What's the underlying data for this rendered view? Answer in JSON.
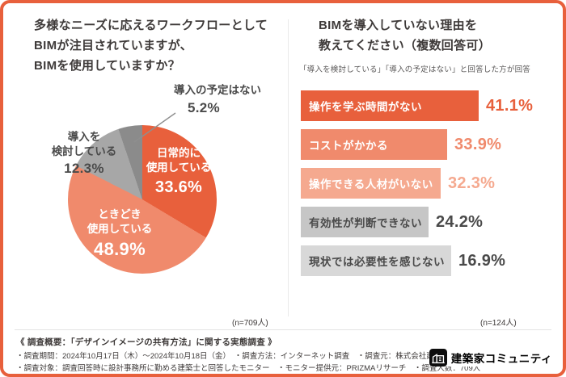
{
  "colors": {
    "accent": "#E8603C",
    "salmon": "#F08A6C",
    "light_salmon": "#F5A98F",
    "pie_gray": "#A7A7A7",
    "pie_gray_dark": "#8B8B8B",
    "bar_gray": "#C6C6C6",
    "bar_gray_light": "#D8D8D8",
    "text_dark": "#3E3A39"
  },
  "left_panel": {
    "title_lines": [
      "多様なニーズに応えるワークフローとして",
      "BIMが注目されていますが、",
      "BIMを使用していますか？"
    ],
    "pie": {
      "slices": [
        {
          "label": "日常的に使用している",
          "line1": "日常的に",
          "line2": "使用している",
          "pct": "33.6%",
          "value": 33.6,
          "color": "#E8603C"
        },
        {
          "label": "ときどき使用している",
          "line1": "ときどき",
          "line2": "使用している",
          "pct": "48.9%",
          "value": 48.9,
          "color": "#F08A6C"
        },
        {
          "label": "導入を検討している",
          "line1": "導入を",
          "line2": "検討している",
          "pct": "12.3%",
          "value": 12.3,
          "color": "#A7A7A7"
        },
        {
          "label": "導入の予定はない",
          "line1": "導入の予定はない",
          "pct": "5.2%",
          "value": 5.2,
          "color": "#8B8B8B"
        }
      ]
    },
    "sample_label": "(n=709人)"
  },
  "right_panel": {
    "title_lines": [
      "BIMを導入していない理由を",
      "教えてください（複数回答可）"
    ],
    "subtitle": "「導入を検討している」「導入の予定はない」と回答した方が回答",
    "bars": [
      {
        "label": "操作を学ぶ時間がない",
        "pct": "41.1%",
        "value": 41.1,
        "bar_color": "#E8603C",
        "label_color": "#FFFFFF",
        "pct_color": "#E8603C"
      },
      {
        "label": "コストがかかる",
        "pct": "33.9%",
        "value": 33.9,
        "bar_color": "#F08A6C",
        "label_color": "#FFFFFF",
        "pct_color": "#F08A6C"
      },
      {
        "label": "操作できる人材がいない",
        "pct": "32.3%",
        "value": 32.3,
        "bar_color": "#F5A98F",
        "label_color": "#FFFFFF",
        "pct_color": "#F5A98F"
      },
      {
        "label": "有効性が判断できない",
        "pct": "24.2%",
        "value": 24.2,
        "bar_color": "#C6C6C6",
        "label_color": "#4A4A4A",
        "pct_color": "#4A4A4A"
      },
      {
        "label": "現状では必要性を感じない",
        "pct": "16.9%",
        "value": 16.9,
        "bar_color": "#D8D8D8",
        "label_color": "#4A4A4A",
        "pct_color": "#4A4A4A"
      }
    ],
    "sample_label": "(n=124人)"
  },
  "footer": {
    "overview": "《 調査概要：「デザインイメージの共有方法」に関する実態調査 》",
    "line2": "・調査期間：2024年10月17日（木）〜2024年10月18日（金）　・調査方法：インターネット調査　・調査元：株式会社建築家コミュニティ",
    "line3": "・調査対象：調査回答時に設計事務所に勤める建築士と回答したモニター　・モニター提供元：PRIZMAリサーチ　・調査人数：709人",
    "logo_text": "建築家コミュニティ"
  },
  "chart_data": [
    {
      "type": "pie",
      "title": "BIMを使用していますか？",
      "labels": [
        "日常的に使用している",
        "ときどき使用している",
        "導入を検討している",
        "導入の予定はない"
      ],
      "values": [
        33.6,
        48.9,
        12.3,
        5.2
      ],
      "unit": "%",
      "sample_size": "n=709人",
      "colors": [
        "#E8603C",
        "#F08A6C",
        "#A7A7A7",
        "#8B8B8B"
      ],
      "start_angle_deg": 0,
      "direction": "clockwise"
    },
    {
      "type": "bar",
      "orientation": "horizontal",
      "title": "BIMを導入していない理由（複数回答可）",
      "categories": [
        "操作を学ぶ時間がない",
        "コストがかかる",
        "操作できる人材がいない",
        "有効性が判断できない",
        "現状では必要性を感じない"
      ],
      "values": [
        41.1,
        33.9,
        32.3,
        24.2,
        16.9
      ],
      "unit": "%",
      "sample_size": "n=124人",
      "xlim": [
        0,
        45
      ],
      "legend": "none",
      "grid": "off"
    }
  ]
}
